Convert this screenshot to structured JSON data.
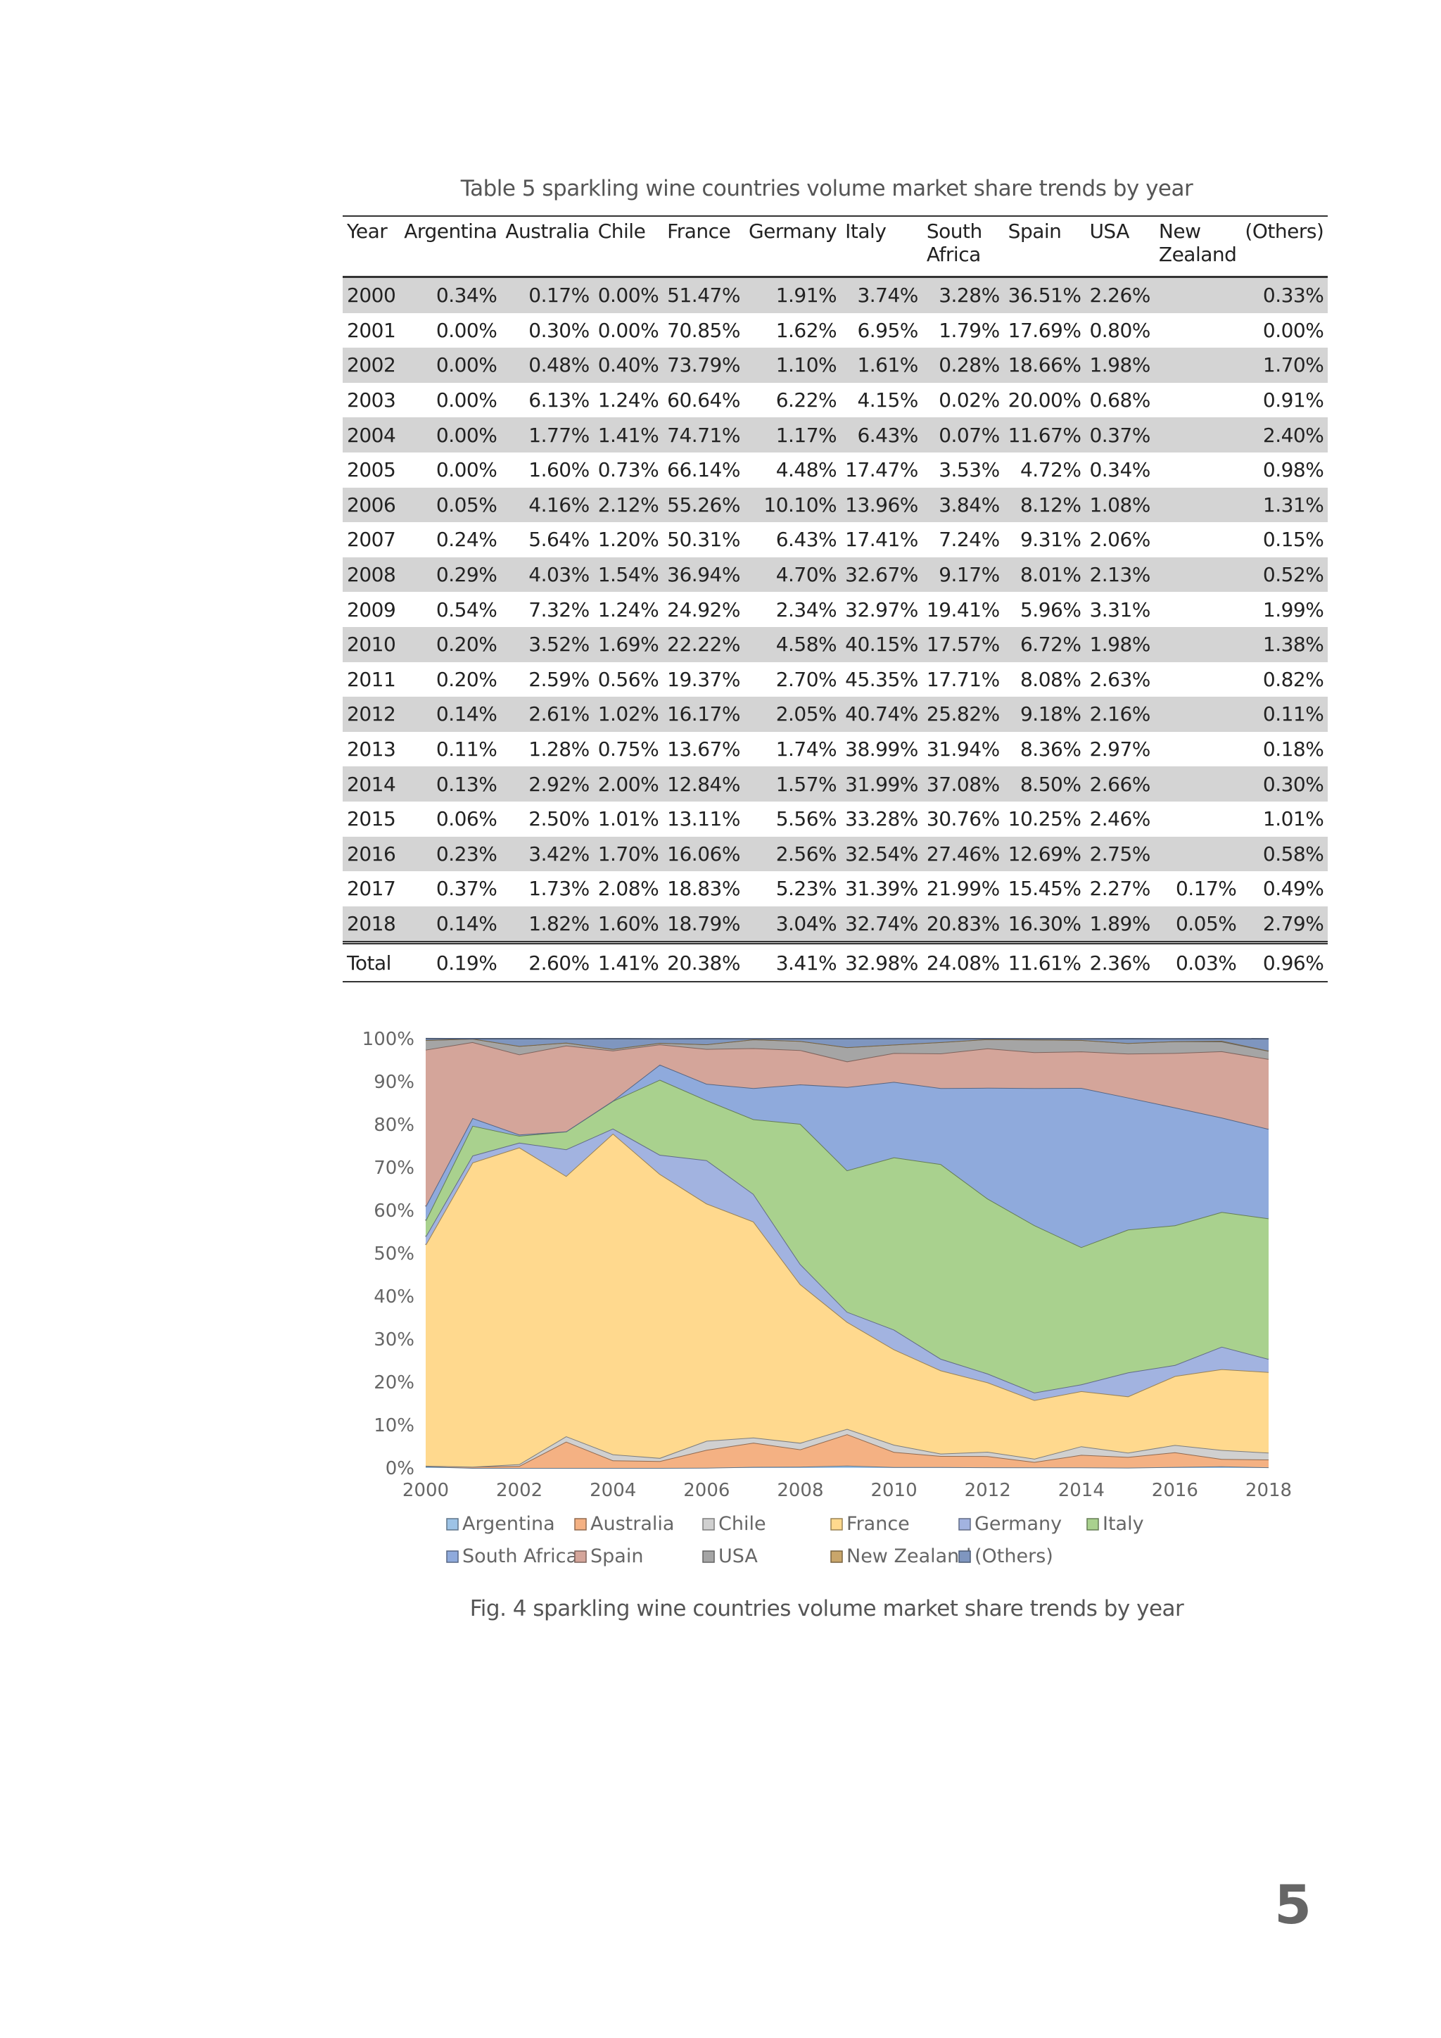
{
  "table": {
    "caption": "Table 5 sparkling wine countries volume market share trends by year",
    "headers": [
      "Year",
      "Argentina",
      "Australia",
      "Chile",
      "France",
      "Germany",
      "Italy",
      "South Africa",
      "Spain",
      "USA",
      "New Zealand",
      "(Others)"
    ],
    "rows": [
      [
        "2000",
        "0.34%",
        "0.17%",
        "0.00%",
        "51.47%",
        "1.91%",
        "3.74%",
        "3.28%",
        "36.51%",
        "2.26%",
        "",
        "0.33%"
      ],
      [
        "2001",
        "0.00%",
        "0.30%",
        "0.00%",
        "70.85%",
        "1.62%",
        "6.95%",
        "1.79%",
        "17.69%",
        "0.80%",
        "",
        "0.00%"
      ],
      [
        "2002",
        "0.00%",
        "0.48%",
        "0.40%",
        "73.79%",
        "1.10%",
        "1.61%",
        "0.28%",
        "18.66%",
        "1.98%",
        "",
        "1.70%"
      ],
      [
        "2003",
        "0.00%",
        "6.13%",
        "1.24%",
        "60.64%",
        "6.22%",
        "4.15%",
        "0.02%",
        "20.00%",
        "0.68%",
        "",
        "0.91%"
      ],
      [
        "2004",
        "0.00%",
        "1.77%",
        "1.41%",
        "74.71%",
        "1.17%",
        "6.43%",
        "0.07%",
        "11.67%",
        "0.37%",
        "",
        "2.40%"
      ],
      [
        "2005",
        "0.00%",
        "1.60%",
        "0.73%",
        "66.14%",
        "4.48%",
        "17.47%",
        "3.53%",
        "4.72%",
        "0.34%",
        "",
        "0.98%"
      ],
      [
        "2006",
        "0.05%",
        "4.16%",
        "2.12%",
        "55.26%",
        "10.10%",
        "13.96%",
        "3.84%",
        "8.12%",
        "1.08%",
        "",
        "1.31%"
      ],
      [
        "2007",
        "0.24%",
        "5.64%",
        "1.20%",
        "50.31%",
        "6.43%",
        "17.41%",
        "7.24%",
        "9.31%",
        "2.06%",
        "",
        "0.15%"
      ],
      [
        "2008",
        "0.29%",
        "4.03%",
        "1.54%",
        "36.94%",
        "4.70%",
        "32.67%",
        "9.17%",
        "8.01%",
        "2.13%",
        "",
        "0.52%"
      ],
      [
        "2009",
        "0.54%",
        "7.32%",
        "1.24%",
        "24.92%",
        "2.34%",
        "32.97%",
        "19.41%",
        "5.96%",
        "3.31%",
        "",
        "1.99%"
      ],
      [
        "2010",
        "0.20%",
        "3.52%",
        "1.69%",
        "22.22%",
        "4.58%",
        "40.15%",
        "17.57%",
        "6.72%",
        "1.98%",
        "",
        "1.38%"
      ],
      [
        "2011",
        "0.20%",
        "2.59%",
        "0.56%",
        "19.37%",
        "2.70%",
        "45.35%",
        "17.71%",
        "8.08%",
        "2.63%",
        "",
        "0.82%"
      ],
      [
        "2012",
        "0.14%",
        "2.61%",
        "1.02%",
        "16.17%",
        "2.05%",
        "40.74%",
        "25.82%",
        "9.18%",
        "2.16%",
        "",
        "0.11%"
      ],
      [
        "2013",
        "0.11%",
        "1.28%",
        "0.75%",
        "13.67%",
        "1.74%",
        "38.99%",
        "31.94%",
        "8.36%",
        "2.97%",
        "",
        "0.18%"
      ],
      [
        "2014",
        "0.13%",
        "2.92%",
        "2.00%",
        "12.84%",
        "1.57%",
        "31.99%",
        "37.08%",
        "8.50%",
        "2.66%",
        "",
        "0.30%"
      ],
      [
        "2015",
        "0.06%",
        "2.50%",
        "1.01%",
        "13.11%",
        "5.56%",
        "33.28%",
        "30.76%",
        "10.25%",
        "2.46%",
        "",
        "1.01%"
      ],
      [
        "2016",
        "0.23%",
        "3.42%",
        "1.70%",
        "16.06%",
        "2.56%",
        "32.54%",
        "27.46%",
        "12.69%",
        "2.75%",
        "",
        "0.58%"
      ],
      [
        "2017",
        "0.37%",
        "1.73%",
        "2.08%",
        "18.83%",
        "5.23%",
        "31.39%",
        "21.99%",
        "15.45%",
        "2.27%",
        "0.17%",
        "0.49%"
      ],
      [
        "2018",
        "0.14%",
        "1.82%",
        "1.60%",
        "18.79%",
        "3.04%",
        "32.74%",
        "20.83%",
        "16.30%",
        "1.89%",
        "0.05%",
        "2.79%"
      ]
    ],
    "total": [
      "Total",
      "0.19%",
      "2.60%",
      "1.41%",
      "20.38%",
      "3.41%",
      "32.98%",
      "24.08%",
      "11.61%",
      "2.36%",
      "0.03%",
      "0.96%"
    ]
  },
  "chart_data": {
    "type": "area",
    "stacked": true,
    "title": "",
    "x": [
      2000,
      2001,
      2002,
      2003,
      2004,
      2005,
      2006,
      2007,
      2008,
      2009,
      2010,
      2011,
      2012,
      2013,
      2014,
      2015,
      2016,
      2017,
      2018
    ],
    "x_ticks": [
      2000,
      2002,
      2004,
      2006,
      2008,
      2010,
      2012,
      2014,
      2016,
      2018
    ],
    "x_tick_labels": [
      "2000",
      "2002",
      "2004",
      "2006",
      "2008",
      "2010",
      "2012",
      "2014",
      "2016",
      "2018"
    ],
    "ylim": [
      0,
      100
    ],
    "y_ticks": [
      0,
      10,
      20,
      30,
      40,
      50,
      60,
      70,
      80,
      90,
      100
    ],
    "y_tick_labels": [
      "0%",
      "10%",
      "20%",
      "30%",
      "40%",
      "50%",
      "60%",
      "70%",
      "80%",
      "90%",
      "100%"
    ],
    "grid": false,
    "legend_placement": "bottom",
    "series": [
      {
        "name": "Argentina",
        "color": "#9dc3e6",
        "values": [
          0.34,
          0.0,
          0.0,
          0.0,
          0.0,
          0.0,
          0.05,
          0.24,
          0.29,
          0.54,
          0.2,
          0.2,
          0.14,
          0.11,
          0.13,
          0.06,
          0.23,
          0.37,
          0.14
        ]
      },
      {
        "name": "Australia",
        "color": "#f4b183",
        "values": [
          0.17,
          0.3,
          0.48,
          6.13,
          1.77,
          1.6,
          4.16,
          5.64,
          4.03,
          7.32,
          3.52,
          2.59,
          2.61,
          1.28,
          2.92,
          2.5,
          3.42,
          1.73,
          1.82
        ]
      },
      {
        "name": "Chile",
        "color": "#d0d0d0",
        "values": [
          0.0,
          0.0,
          0.4,
          1.24,
          1.41,
          0.73,
          2.12,
          1.2,
          1.54,
          1.24,
          1.69,
          0.56,
          1.02,
          0.75,
          2.0,
          1.01,
          1.7,
          2.08,
          1.6
        ]
      },
      {
        "name": "France",
        "color": "#ffd98e",
        "values": [
          51.47,
          70.85,
          73.79,
          60.64,
          74.71,
          66.14,
          55.26,
          50.31,
          36.94,
          24.92,
          22.22,
          19.37,
          16.17,
          13.67,
          12.84,
          13.11,
          16.06,
          18.83,
          18.79
        ]
      },
      {
        "name": "Germany",
        "color": "#a2b3e0",
        "values": [
          1.91,
          1.62,
          1.1,
          6.22,
          1.17,
          4.48,
          10.1,
          6.43,
          4.7,
          2.34,
          4.58,
          2.7,
          2.05,
          1.74,
          1.57,
          5.56,
          2.56,
          5.23,
          3.04
        ]
      },
      {
        "name": "Italy",
        "color": "#a9d18e",
        "values": [
          3.74,
          6.95,
          1.61,
          4.15,
          6.43,
          17.47,
          13.96,
          17.41,
          32.67,
          32.97,
          40.15,
          45.35,
          40.74,
          38.99,
          31.99,
          33.28,
          32.54,
          31.39,
          32.74
        ]
      },
      {
        "name": "South Africa",
        "color": "#8faadc",
        "values": [
          3.28,
          1.79,
          0.28,
          0.02,
          0.07,
          3.53,
          3.84,
          7.24,
          9.17,
          19.41,
          17.57,
          17.71,
          25.82,
          31.94,
          37.08,
          30.76,
          27.46,
          21.99,
          20.83
        ]
      },
      {
        "name": "Spain",
        "color": "#d4a59a",
        "values": [
          36.51,
          17.69,
          18.66,
          20.0,
          11.67,
          4.72,
          8.12,
          9.31,
          8.01,
          5.96,
          6.72,
          8.08,
          9.18,
          8.36,
          8.5,
          10.25,
          12.69,
          15.45,
          16.3
        ]
      },
      {
        "name": "USA",
        "color": "#a5a5a5",
        "values": [
          2.26,
          0.8,
          1.98,
          0.68,
          0.37,
          0.34,
          1.08,
          2.06,
          2.13,
          3.31,
          1.98,
          2.63,
          2.16,
          2.97,
          2.66,
          2.46,
          2.75,
          2.27,
          1.89
        ]
      },
      {
        "name": "New Zealand",
        "color": "#c9a66b",
        "values": [
          0,
          0,
          0,
          0,
          0,
          0,
          0,
          0,
          0,
          0,
          0,
          0,
          0,
          0,
          0,
          0,
          0,
          0.17,
          0.05
        ]
      },
      {
        "name": "(Others)",
        "color": "#7f96bf",
        "values": [
          0.33,
          0.0,
          1.7,
          0.91,
          2.4,
          0.98,
          1.31,
          0.15,
          0.52,
          1.99,
          1.38,
          0.82,
          0.11,
          0.18,
          0.3,
          1.01,
          0.58,
          0.49,
          2.79
        ]
      }
    ]
  },
  "figure": {
    "caption": "Fig. 4 sparkling wine countries volume market share trends by year"
  },
  "page": {
    "number": "5"
  }
}
